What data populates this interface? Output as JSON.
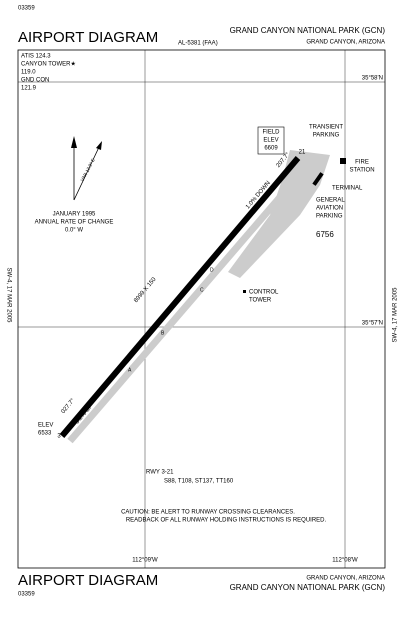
{
  "header": {
    "number": "03359",
    "title": "AIRPORT DIAGRAM",
    "chart_id": "AL-5381 (FAA)",
    "airport": "GRAND CANYON NATIONAL PARK (GCN)",
    "location": "GRAND CANYON, ARIZONA"
  },
  "frequencies": [
    "ATIS 124.3",
    "CANYON TOWER★",
    "119.0",
    "GND CON",
    "121.9"
  ],
  "coordinates": {
    "lat_north": "35°58'N",
    "lat_south": "35°57'N",
    "lon_west": "112°09'W",
    "lon_east": "112°08'W"
  },
  "side_note": "SW-4, 17 MAR 2005",
  "variation": {
    "label": "VAR 12.9° E",
    "date": "JANUARY 1995",
    "rate_title": "ANNUAL RATE OF CHANGE",
    "rate": "0.0° W"
  },
  "runway": {
    "size": "8999 X 150",
    "end_sw": "3",
    "end_ne": "21",
    "heading_sw": "027.7°",
    "heading_ne": "207.7°",
    "slope_down": "1.0% DOWN",
    "slope_up": "0.2% UP",
    "elev_label": "ELEV",
    "elev": "6533"
  },
  "field_elev": [
    "FIELD",
    "ELEV",
    "6609"
  ],
  "facilities": {
    "transient": [
      "TRANSIENT",
      "PARKING"
    ],
    "fire": [
      "FIRE",
      "STATION"
    ],
    "terminal": "TERMINAL",
    "ga": [
      "GENERAL",
      "AVIATION",
      "PARKING"
    ],
    "obstacle": "6756",
    "tower": [
      "CONTROL",
      "TOWER"
    ]
  },
  "taxiways": [
    "A",
    "B",
    "C",
    "D"
  ],
  "declared": {
    "title": "RWY 3-21",
    "values": "S88, T108, ST137, TT160"
  },
  "caution": [
    "CAUTION: BE ALERT TO RUNWAY CROSSING CLEARANCES.",
    "READBACK OF ALL RUNWAY HOLDING INSTRUCTIONS IS REQUIRED."
  ],
  "footer": {
    "title": "AIRPORT DIAGRAM",
    "number": "03359",
    "location": "GRAND CANYON, ARIZONA",
    "airport": "GRAND CANYON NATIONAL PARK (GCN)"
  }
}
